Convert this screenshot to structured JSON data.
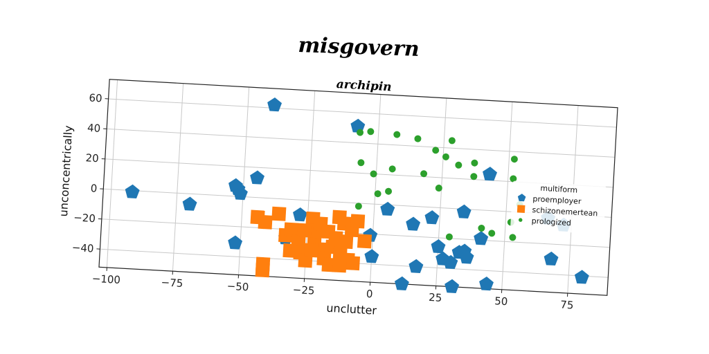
{
  "title": "misgovern",
  "chart_data": {
    "type": "scatter",
    "title": "archipin",
    "xlabel": "unclutter",
    "ylabel": "unconcentrically",
    "xlim": [
      -103,
      90
    ],
    "ylim": [
      -52,
      73
    ],
    "xticks": [
      -100,
      -75,
      -50,
      -25,
      0,
      25,
      50,
      75
    ],
    "xtick_labels": [
      "−100",
      "−75",
      "−50",
      "−25",
      "0",
      "25",
      "50",
      "75"
    ],
    "yticks": [
      -40,
      -20,
      0,
      20,
      40,
      60
    ],
    "ytick_labels": [
      "−40",
      "−20",
      "0",
      "20",
      "40",
      "60"
    ],
    "grid": true,
    "legend": {
      "title": "multiform",
      "placement": "center-right"
    },
    "series": [
      {
        "name": "proemployer",
        "marker": "pentagon",
        "color": "#1f77b4",
        "points": [
          [
            -40,
            62
          ],
          [
            -8,
            51
          ],
          [
            -92,
            -1
          ],
          [
            -70,
            -7
          ],
          [
            -53,
            7
          ],
          [
            -52,
            5
          ],
          [
            -51,
            2
          ],
          [
            -45,
            13
          ],
          [
            -52,
            -31
          ],
          [
            -33,
            -26
          ],
          [
            -28,
            -10
          ],
          [
            -1,
            -21
          ],
          [
            0,
            -35
          ],
          [
            5,
            -3
          ],
          [
            15,
            -12
          ],
          [
            22,
            -7
          ],
          [
            34,
            -2
          ],
          [
            43,
            24
          ],
          [
            41,
            -19
          ],
          [
            25,
            -26
          ],
          [
            27,
            -34
          ],
          [
            30,
            -36
          ],
          [
            33,
            -29
          ],
          [
            35,
            -28
          ],
          [
            36,
            -32
          ],
          [
            17,
            -40
          ],
          [
            12,
            -52
          ],
          [
            31,
            -52
          ],
          [
            44,
            -49
          ],
          [
            66,
            -3
          ],
          [
            72,
            -7
          ],
          [
            68,
            -30
          ],
          [
            80,
            -41
          ]
        ]
      },
      {
        "name": "schizonemertean",
        "marker": "square",
        "color": "#ff7f0e",
        "points": [
          [
            -44,
            -13
          ],
          [
            -41,
            -16
          ],
          [
            -36,
            -10
          ],
          [
            -33,
            -24
          ],
          [
            -31,
            -20
          ],
          [
            -31,
            -34
          ],
          [
            -28,
            -28
          ],
          [
            -27,
            -35
          ],
          [
            -25,
            -40
          ],
          [
            -23,
            -12
          ],
          [
            -22,
            -27
          ],
          [
            -21,
            -20
          ],
          [
            -20,
            -15
          ],
          [
            -19,
            -32
          ],
          [
            -17,
            -20
          ],
          [
            -15,
            -30
          ],
          [
            -14,
            -24
          ],
          [
            -13,
            -10
          ],
          [
            -12,
            -34
          ],
          [
            -11,
            -14
          ],
          [
            -10,
            -26
          ],
          [
            -9,
            -38
          ],
          [
            -8,
            -18
          ],
          [
            -7,
            -40
          ],
          [
            -6,
            -12
          ],
          [
            -26,
            -20
          ],
          [
            -23,
            -33
          ],
          [
            -18,
            -38
          ],
          [
            -16,
            -42
          ],
          [
            -41,
            -44
          ],
          [
            -41,
            -48
          ],
          [
            -3,
            -25
          ],
          [
            -12,
            -42
          ]
        ]
      },
      {
        "name": "prologized",
        "marker": "circle",
        "color": "#2ca02c",
        "points": [
          [
            -7,
            47
          ],
          [
            -3,
            48
          ],
          [
            7,
            47
          ],
          [
            15,
            45
          ],
          [
            28,
            45
          ],
          [
            22,
            38
          ],
          [
            26,
            34
          ],
          [
            31,
            29
          ],
          [
            37,
            31
          ],
          [
            52,
            35
          ],
          [
            -6,
            27
          ],
          [
            6,
            24
          ],
          [
            -1,
            20
          ],
          [
            18,
            22
          ],
          [
            37,
            22
          ],
          [
            52,
            22
          ],
          [
            24,
            13
          ],
          [
            5,
            9
          ],
          [
            1,
            7
          ],
          [
            -6,
            -2
          ],
          [
            52,
            -7
          ],
          [
            55,
            5
          ],
          [
            41,
            -12
          ],
          [
            45,
            -15
          ],
          [
            29,
            -19
          ],
          [
            53,
            -17
          ]
        ]
      }
    ]
  }
}
